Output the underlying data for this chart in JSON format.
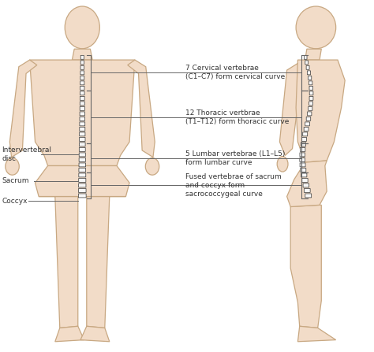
{
  "bg_color": "#ffffff",
  "body_color": "#f2dcc8",
  "body_edge_color": "#c8a882",
  "spine_color": "#444444",
  "label_color": "#333333",
  "line_color": "#666666",
  "right_labels": [
    {
      "text": "7 Cervical vertebrae\n(C1–C7) form cervical curve"
    },
    {
      "text": "12 Thoracic vertbrae\n(T1–T12) form thoracic curve"
    },
    {
      "text": "5 Lumbar vertebrae (L1–L5)\nform lumbar curve"
    },
    {
      "text": "Fused vertebrae of sacrum\nand coccyx form\nsacrococcygeal curve"
    }
  ],
  "left_labels": [
    {
      "text": "Intervertebral\ndisc"
    },
    {
      "text": "Sacrum"
    },
    {
      "text": "Coccyx"
    }
  ],
  "font_size": 6.5,
  "figsize": [
    4.74,
    4.47
  ],
  "dpi": 100
}
